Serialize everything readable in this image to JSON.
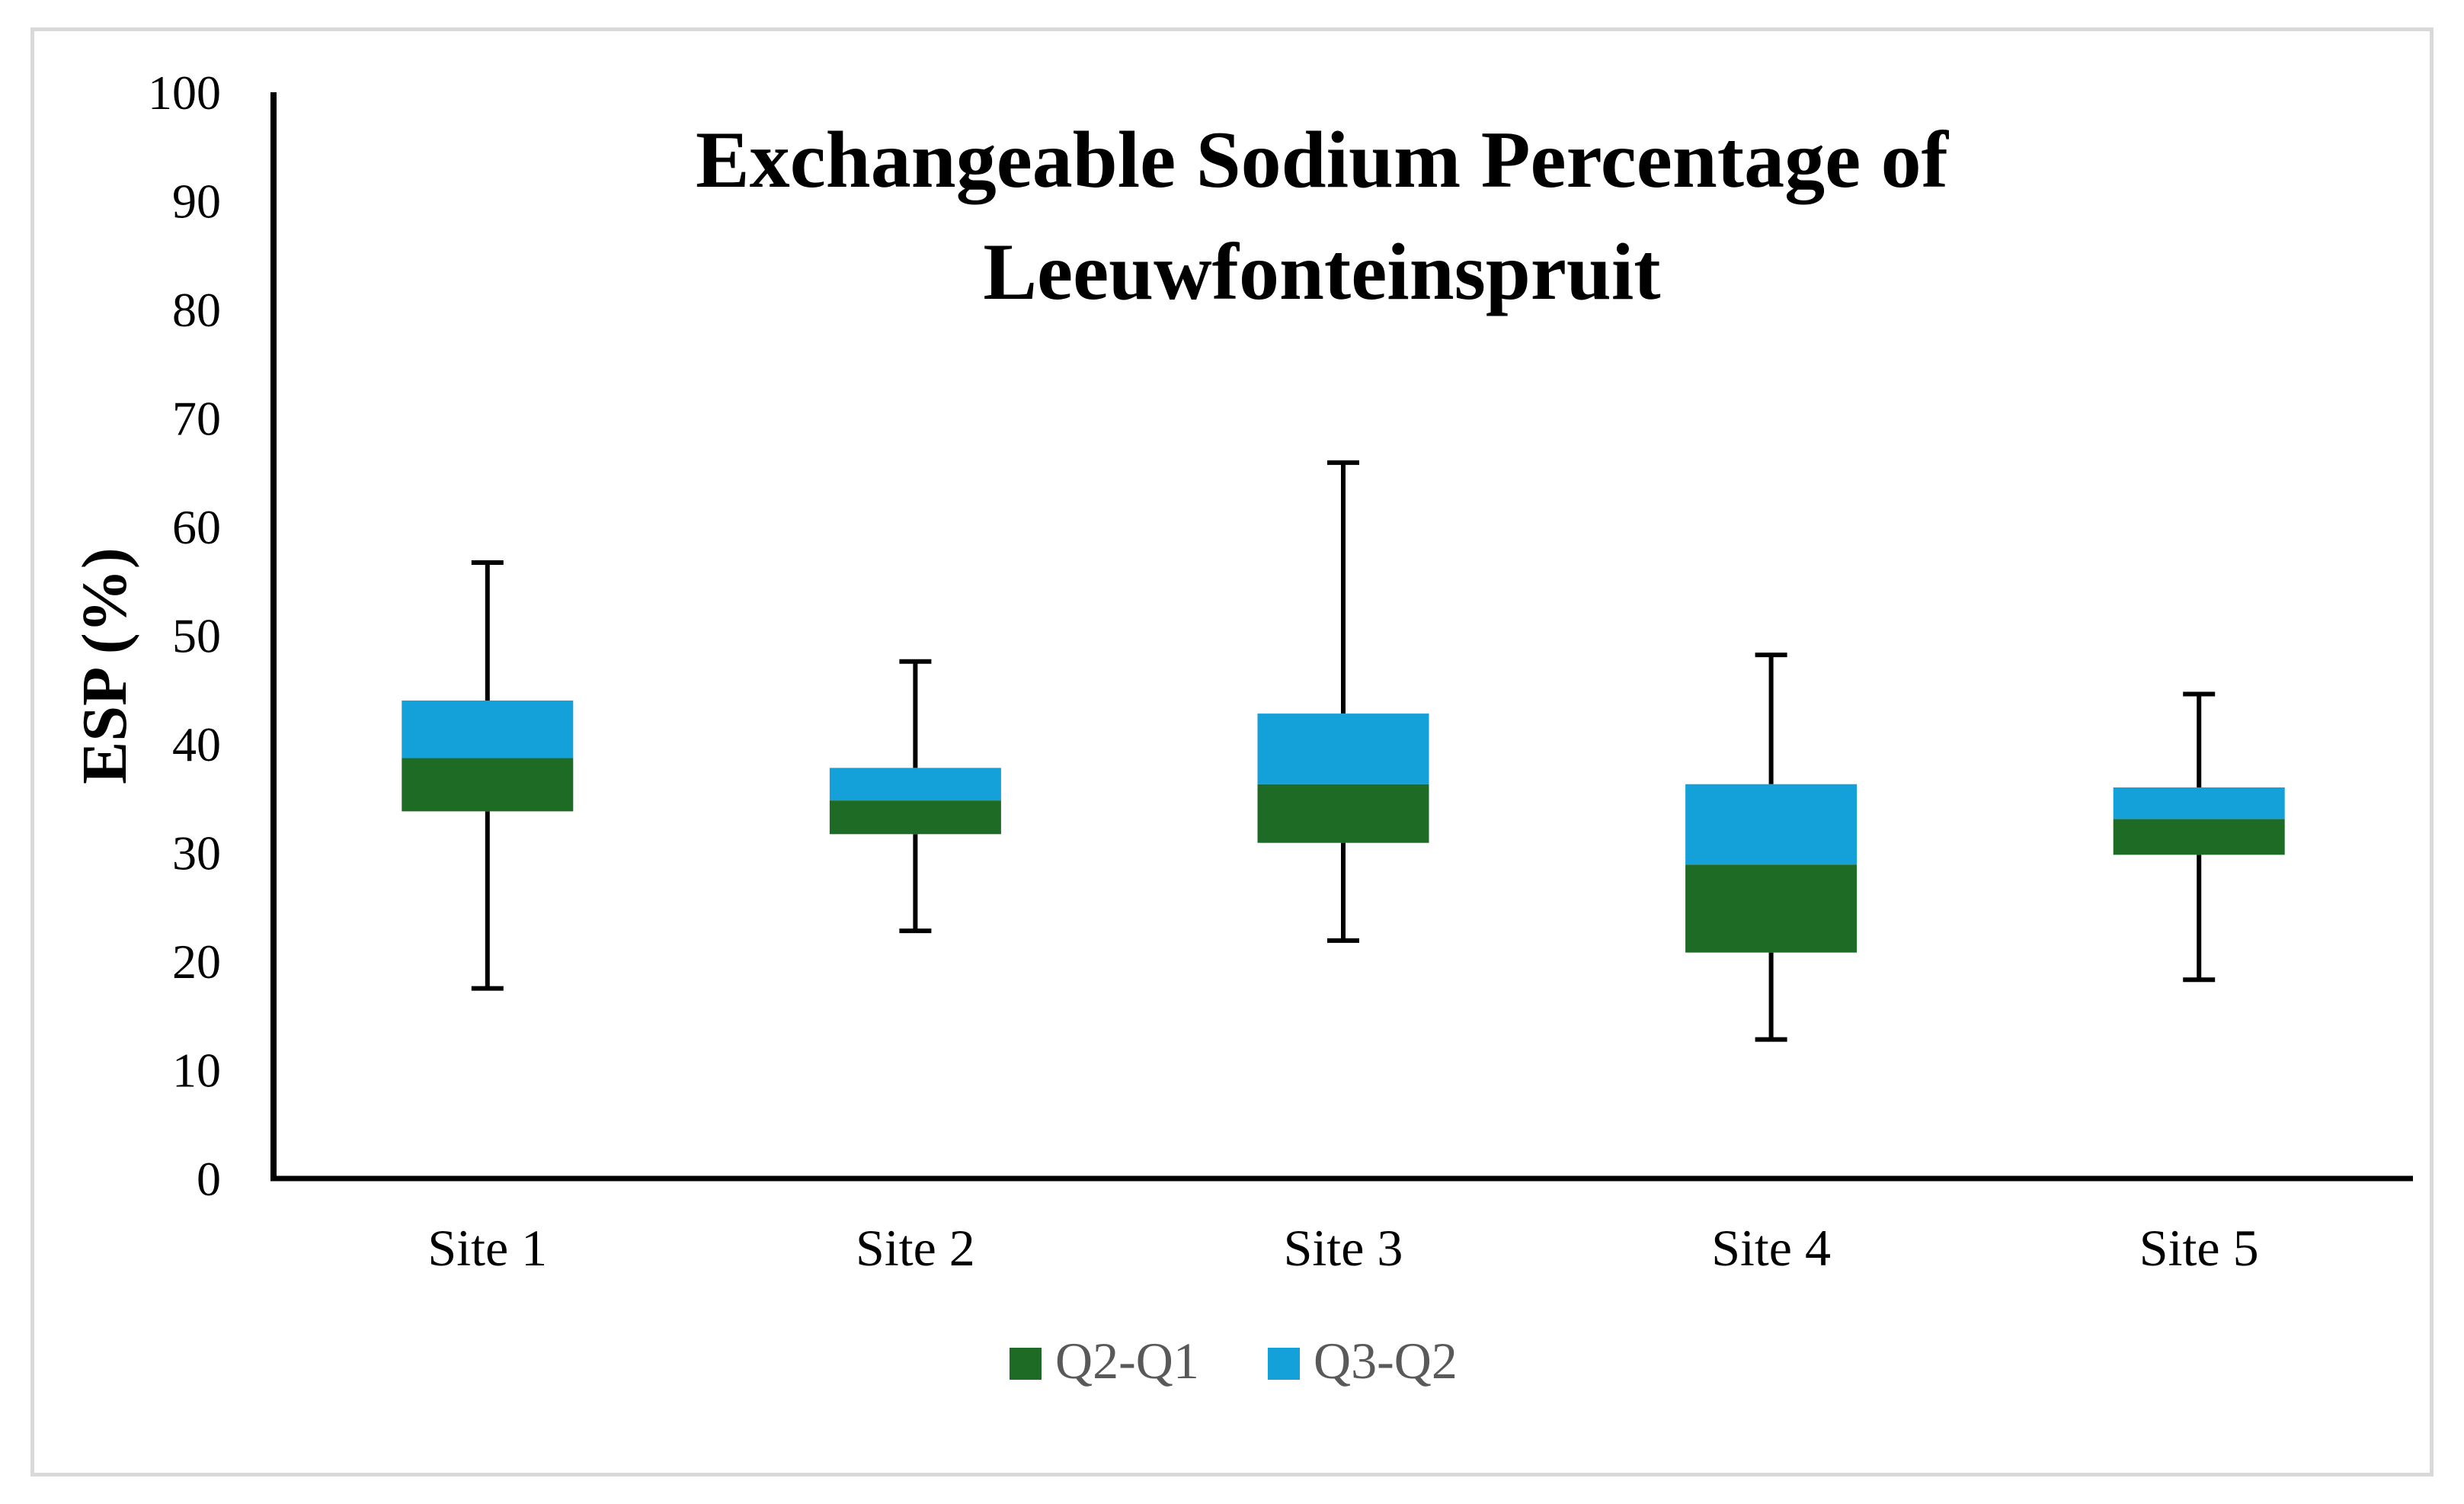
{
  "chart_data": {
    "type": "box",
    "title_lines": [
      "Exchangeable Sodium Percentage of",
      "Leeuwfonteinspruit"
    ],
    "xlabel": "",
    "ylabel": "ESP (%)",
    "ylim": [
      0,
      100
    ],
    "yticks": [
      0,
      10,
      20,
      30,
      40,
      50,
      60,
      70,
      80,
      90,
      100
    ],
    "grid": false,
    "legend_position": "bottom",
    "categories": [
      "Site 1",
      "Site 2",
      "Site 3",
      "Site 4",
      "Site 5"
    ],
    "stats": [
      {
        "min": 17.5,
        "q1": 33.8,
        "median": 38.7,
        "q3": 44.0,
        "max": 56.7
      },
      {
        "min": 22.8,
        "q1": 31.7,
        "median": 34.8,
        "q3": 37.8,
        "max": 47.6
      },
      {
        "min": 21.9,
        "q1": 30.9,
        "median": 36.3,
        "q3": 42.8,
        "max": 65.9
      },
      {
        "min": 12.8,
        "q1": 20.8,
        "median": 28.9,
        "q3": 36.3,
        "max": 48.2
      },
      {
        "min": 18.3,
        "q1": 29.8,
        "median": 33.1,
        "q3": 36.0,
        "max": 44.6
      }
    ],
    "series": [
      {
        "name": "Q2-Q1",
        "color": "#1e6b25"
      },
      {
        "name": "Q3-Q2",
        "color": "#14a0d8"
      }
    ]
  }
}
